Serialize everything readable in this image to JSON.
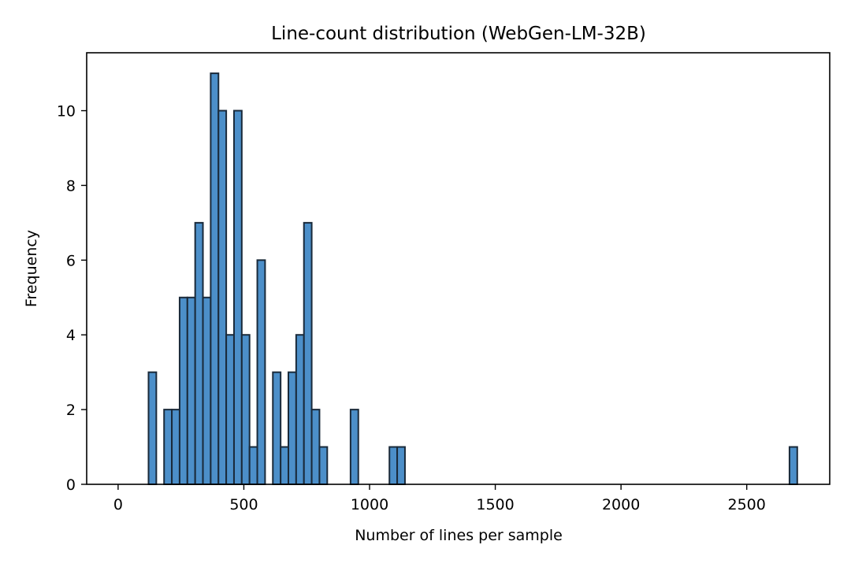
{
  "chart_data": {
    "type": "bar",
    "title": "Line-count distribution (WebGen-LM-32B)",
    "xlabel": "Number of lines per sample",
    "ylabel": "Frequency",
    "xlim": [
      -125,
      2830
    ],
    "ylim": [
      0,
      11.55
    ],
    "xticks": [
      0,
      500,
      1000,
      1500,
      2000,
      2500
    ],
    "yticks": [
      0,
      2,
      4,
      6,
      8,
      10
    ],
    "bin_width": 30.9,
    "bins": [
      {
        "start": 121.0,
        "count": 3
      },
      {
        "start": 182.8,
        "count": 2
      },
      {
        "start": 213.7,
        "count": 2
      },
      {
        "start": 244.6,
        "count": 5
      },
      {
        "start": 275.5,
        "count": 5
      },
      {
        "start": 306.4,
        "count": 7
      },
      {
        "start": 337.3,
        "count": 5
      },
      {
        "start": 368.2,
        "count": 11
      },
      {
        "start": 399.1,
        "count": 10
      },
      {
        "start": 430.0,
        "count": 4
      },
      {
        "start": 460.9,
        "count": 10
      },
      {
        "start": 491.8,
        "count": 4
      },
      {
        "start": 522.7,
        "count": 1
      },
      {
        "start": 553.6,
        "count": 6
      },
      {
        "start": 615.4,
        "count": 3
      },
      {
        "start": 646.3,
        "count": 1
      },
      {
        "start": 677.2,
        "count": 3
      },
      {
        "start": 708.1,
        "count": 4
      },
      {
        "start": 739.0,
        "count": 7
      },
      {
        "start": 769.9,
        "count": 2
      },
      {
        "start": 800.8,
        "count": 1
      },
      {
        "start": 924.4,
        "count": 2
      },
      {
        "start": 1079.0,
        "count": 1
      },
      {
        "start": 1109.9,
        "count": 1
      },
      {
        "start": 2670.0,
        "count": 1
      }
    ],
    "bar_color": "#4c8fc9",
    "bar_edge_color": "#1a2a3a",
    "grid": false,
    "legend": "none"
  }
}
